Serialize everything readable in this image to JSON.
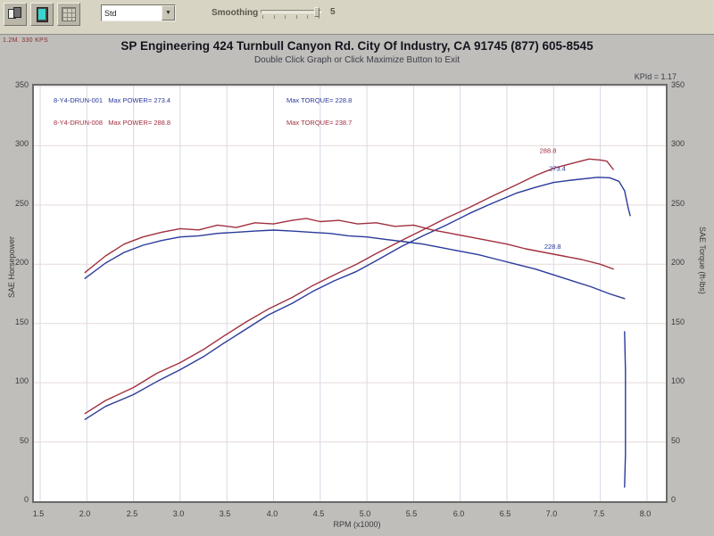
{
  "toolbar": {
    "dropdown_value": "Std",
    "dropdown_arrow": "▼",
    "smoothing_label": "Smoothing",
    "smoothing_value": "5"
  },
  "window": {
    "mini_label": "1.2M. 330 KPS",
    "title": "SP Engineering 424 Turnbull Canyon Rd. City Of Industry, CA 91745 (877) 605-8545",
    "subtitle": "Double Click Graph or Click Maximize Button to Exit",
    "corner_stat": "KPId = 1.17"
  },
  "legend": {
    "rows": [
      {
        "run": "8-Y4-DRUN-001   Max POWER= 273.4",
        "torque": "Max TORQUE= 228.8",
        "color": "#2a3a9a"
      },
      {
        "run": "8-Y4-DRUN-008   Max POWER= 288.8",
        "torque": "Max TORQUE= 238.7",
        "color": "#a03040"
      }
    ]
  },
  "chart_data": {
    "type": "line",
    "title": "SP Engineering 424 Turnbull Canyon Rd. City Of Industry, CA 91745 (877) 605-8545",
    "xlabel": "RPM (x1000)",
    "ylabel_left": "SAE Horsepower",
    "ylabel_right": "SAE Torque (ft-lbs)",
    "xlim": [
      1.43,
      8.2
    ],
    "ylim": [
      0,
      350
    ],
    "x_ticks": [
      1.5,
      2.0,
      2.5,
      3.0,
      3.5,
      4.0,
      4.5,
      5.0,
      5.5,
      6.0,
      6.5,
      7.0,
      7.5,
      8.0
    ],
    "y_ticks": [
      0,
      50,
      100,
      150,
      200,
      250,
      300,
      350
    ],
    "grid": true,
    "legend_position": "top-inside",
    "series": [
      {
        "name": "Run 008 Horsepower",
        "color": "#a03040",
        "max": 288.8,
        "points": [
          [
            1.98,
            74
          ],
          [
            2.2,
            85
          ],
          [
            2.5,
            96
          ],
          [
            2.75,
            108
          ],
          [
            3.0,
            117
          ],
          [
            3.25,
            128
          ],
          [
            3.46,
            139
          ],
          [
            3.7,
            151
          ],
          [
            3.94,
            162
          ],
          [
            4.2,
            172
          ],
          [
            4.42,
            182
          ],
          [
            4.65,
            191
          ],
          [
            4.89,
            200
          ],
          [
            5.1,
            209
          ],
          [
            5.37,
            220
          ],
          [
            5.6,
            229
          ],
          [
            5.85,
            239
          ],
          [
            6.1,
            248
          ],
          [
            6.33,
            257
          ],
          [
            6.6,
            267
          ],
          [
            6.81,
            275
          ],
          [
            7.0,
            281
          ],
          [
            7.19,
            285
          ],
          [
            7.38,
            288.8
          ],
          [
            7.5,
            288
          ],
          [
            7.57,
            287
          ],
          [
            7.64,
            280
          ]
        ]
      },
      {
        "name": "Run 001 Horsepower",
        "color": "#2a3a9a",
        "max": 273.4,
        "points": [
          [
            1.98,
            69
          ],
          [
            2.2,
            80
          ],
          [
            2.5,
            90
          ],
          [
            2.75,
            101
          ],
          [
            3.0,
            111
          ],
          [
            3.25,
            122
          ],
          [
            3.46,
            133
          ],
          [
            3.7,
            145
          ],
          [
            3.94,
            157
          ],
          [
            4.2,
            167
          ],
          [
            4.42,
            177
          ],
          [
            4.65,
            186
          ],
          [
            4.89,
            194
          ],
          [
            5.1,
            203
          ],
          [
            5.37,
            215
          ],
          [
            5.6,
            224
          ],
          [
            5.85,
            233
          ],
          [
            6.1,
            243
          ],
          [
            6.33,
            251
          ],
          [
            6.6,
            260
          ],
          [
            6.81,
            265
          ],
          [
            7.0,
            269
          ],
          [
            7.19,
            271
          ],
          [
            7.47,
            273.4
          ],
          [
            7.6,
            273
          ],
          [
            7.7,
            270
          ],
          [
            7.76,
            262
          ],
          [
            7.8,
            247
          ],
          [
            7.82,
            241
          ]
        ]
      },
      {
        "name": "Run 008 Torque",
        "color": "#a03040",
        "max": 238.7,
        "points": [
          [
            1.98,
            193
          ],
          [
            2.2,
            207
          ],
          [
            2.4,
            217
          ],
          [
            2.6,
            223
          ],
          [
            2.8,
            227
          ],
          [
            3.0,
            230
          ],
          [
            3.2,
            229
          ],
          [
            3.4,
            233
          ],
          [
            3.6,
            231
          ],
          [
            3.8,
            235
          ],
          [
            4.0,
            234
          ],
          [
            4.2,
            237
          ],
          [
            4.35,
            238.7
          ],
          [
            4.5,
            236
          ],
          [
            4.7,
            237
          ],
          [
            4.9,
            234
          ],
          [
            5.1,
            235
          ],
          [
            5.3,
            232
          ],
          [
            5.5,
            233
          ],
          [
            5.7,
            229
          ],
          [
            5.9,
            226
          ],
          [
            6.1,
            223
          ],
          [
            6.3,
            220
          ],
          [
            6.5,
            217
          ],
          [
            6.7,
            213
          ],
          [
            6.9,
            210
          ],
          [
            7.1,
            207
          ],
          [
            7.3,
            204
          ],
          [
            7.5,
            200
          ],
          [
            7.64,
            196
          ]
        ]
      },
      {
        "name": "Run 001 Torque",
        "color": "#2a3a9a",
        "max": 228.8,
        "points": [
          [
            1.98,
            188
          ],
          [
            2.2,
            201
          ],
          [
            2.4,
            210
          ],
          [
            2.6,
            216
          ],
          [
            2.8,
            220
          ],
          [
            3.0,
            223
          ],
          [
            3.2,
            224
          ],
          [
            3.4,
            226
          ],
          [
            3.6,
            227
          ],
          [
            3.8,
            228
          ],
          [
            4.0,
            228.8
          ],
          [
            4.2,
            228
          ],
          [
            4.4,
            227
          ],
          [
            4.6,
            226
          ],
          [
            4.8,
            224
          ],
          [
            5.0,
            223
          ],
          [
            5.2,
            221
          ],
          [
            5.4,
            219
          ],
          [
            5.6,
            217
          ],
          [
            5.8,
            214
          ],
          [
            6.0,
            211
          ],
          [
            6.2,
            208
          ],
          [
            6.4,
            204
          ],
          [
            6.6,
            200
          ],
          [
            6.8,
            196
          ],
          [
            7.0,
            191
          ],
          [
            7.2,
            186
          ],
          [
            7.4,
            181
          ],
          [
            7.6,
            175
          ],
          [
            7.76,
            171
          ]
        ]
      },
      {
        "name": "Run 001 tail drop",
        "color": "#2a3a9a",
        "points": [
          [
            7.76,
            143
          ],
          [
            7.77,
            110
          ],
          [
            7.77,
            75
          ],
          [
            7.77,
            40
          ],
          [
            7.76,
            12
          ]
        ]
      }
    ],
    "annotations": [
      {
        "x": 6.85,
        "y": 294,
        "text": "288.8",
        "color": "#a03040"
      },
      {
        "x": 6.95,
        "y": 279,
        "text": "273.4",
        "color": "#2a3a9a"
      },
      {
        "x": 6.9,
        "y": 213,
        "text": "228.8",
        "color": "#2a3a9a"
      }
    ]
  }
}
